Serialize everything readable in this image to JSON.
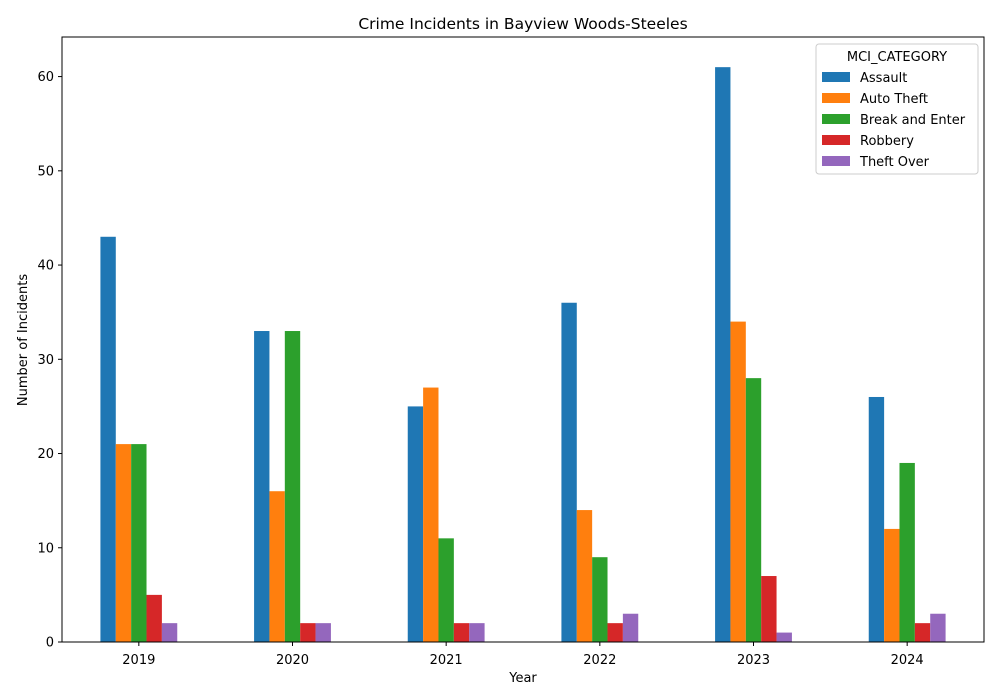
{
  "chart_data": {
    "type": "bar",
    "title": "Crime Incidents in Bayview Woods-Steeles",
    "xlabel": "Year",
    "ylabel": "Number of Incidents",
    "categories": [
      "2019",
      "2020",
      "2021",
      "2022",
      "2023",
      "2024"
    ],
    "ylim": [
      0,
      64.2
    ],
    "yticks": [
      0,
      10,
      20,
      30,
      40,
      50,
      60
    ],
    "grid": false,
    "legend": {
      "title": "MCI_CATEGORY",
      "placement": "top-right"
    },
    "series": [
      {
        "name": "Assault",
        "color": "#1f77b4",
        "values": [
          43,
          33,
          25,
          36,
          61,
          26
        ]
      },
      {
        "name": "Auto Theft",
        "color": "#ff7f0e",
        "values": [
          21,
          16,
          27,
          14,
          34,
          12
        ]
      },
      {
        "name": "Break and Enter",
        "color": "#2ca02c",
        "values": [
          21,
          33,
          11,
          9,
          28,
          19
        ]
      },
      {
        "name": "Robbery",
        "color": "#d62728",
        "values": [
          5,
          2,
          2,
          2,
          7,
          2
        ]
      },
      {
        "name": "Theft Over",
        "color": "#9467bd",
        "values": [
          2,
          2,
          2,
          3,
          1,
          3
        ]
      }
    ]
  }
}
